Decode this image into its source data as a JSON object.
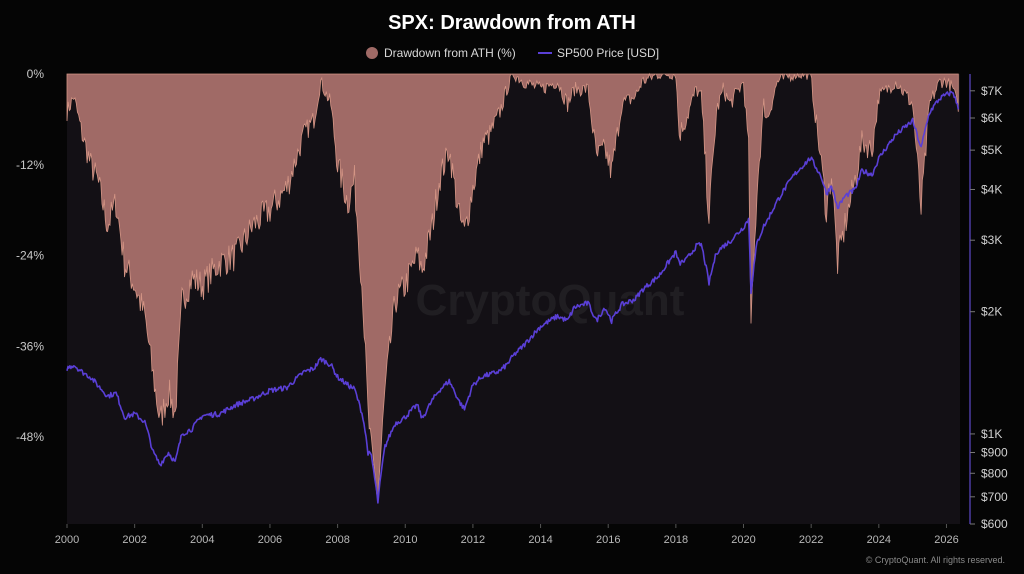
{
  "chart_data": {
    "type": "area",
    "title": "SPX: Drawdown from ATH",
    "legend": [
      {
        "label": "Drawdown from ATH (%)",
        "color": "#a06a66",
        "marker": "dot"
      },
      {
        "label": "SP500 Price [USD]",
        "color": "#5a3fd6",
        "marker": "line"
      }
    ],
    "legend_placement": "top-center",
    "x_ticks": [
      "2000",
      "2002",
      "2004",
      "2006",
      "2008",
      "2010",
      "2012",
      "2014",
      "2016",
      "2018",
      "2020",
      "2022",
      "2024",
      "2026"
    ],
    "xlim": [
      2000.0,
      2026.4
    ],
    "left_axis": {
      "ticks": [
        "0%",
        "-12%",
        "-24%",
        "-36%",
        "-48%"
      ],
      "tick_values": [
        0,
        -12,
        -24,
        -36,
        -48
      ],
      "range": [
        -59.5,
        0
      ]
    },
    "right_axis": {
      "scale": "log",
      "ticks": [
        "$7K",
        "$6K",
        "$5K",
        "$4K",
        "$3K",
        "$2K",
        "$1K",
        "$900",
        "$800",
        "$700",
        "$600"
      ],
      "tick_values": [
        7000,
        6000,
        5000,
        4000,
        3000,
        2000,
        1000,
        900,
        800,
        700,
        600
      ],
      "range": [
        600,
        7700
      ]
    },
    "grid": false,
    "series": [
      {
        "name": "Drawdown from ATH (%)",
        "axis": "left",
        "color": "#a06a66",
        "fill": true,
        "x": [
          2000.0,
          2000.2,
          2000.45,
          2000.7,
          2000.9,
          2001.2,
          2001.45,
          2001.7,
          2002.0,
          2002.3,
          2002.55,
          2002.75,
          2003.0,
          2003.2,
          2003.4,
          2003.7,
          2004.0,
          2004.5,
          2005.0,
          2005.5,
          2006.0,
          2006.5,
          2007.0,
          2007.3,
          2007.5,
          2007.8,
          2008.0,
          2008.3,
          2008.5,
          2008.75,
          2008.9,
          2009.0,
          2009.19,
          2009.4,
          2009.7,
          2010.0,
          2010.35,
          2010.5,
          2010.8,
          2011.0,
          2011.3,
          2011.6,
          2011.75,
          2012.0,
          2012.3,
          2012.5,
          2012.8,
          2013.0,
          2013.2,
          2013.5,
          2014.0,
          2014.5,
          2014.8,
          2015.0,
          2015.4,
          2015.65,
          2015.9,
          2016.1,
          2016.4,
          2016.8,
          2017.0,
          2017.5,
          2018.0,
          2018.1,
          2018.3,
          2018.6,
          2018.75,
          2018.98,
          2019.2,
          2019.4,
          2019.6,
          2020.0,
          2020.15,
          2020.22,
          2020.4,
          2020.6,
          2020.7,
          2021.0,
          2021.5,
          2021.98,
          2022.3,
          2022.45,
          2022.6,
          2022.78,
          2023.0,
          2023.3,
          2023.5,
          2023.8,
          2024.0,
          2024.5,
          2025.0,
          2025.25,
          2025.5,
          2025.8,
          2026.0,
          2026.2,
          2026.35
        ],
        "values": [
          -5,
          -3,
          -8,
          -12,
          -14,
          -20,
          -17,
          -25,
          -28,
          -32,
          -40,
          -46,
          -42,
          -45,
          -30,
          -27,
          -28,
          -25,
          -24,
          -20,
          -18,
          -15,
          -8,
          -6,
          -1,
          -4,
          -12,
          -17,
          -14,
          -30,
          -45,
          -50,
          -56,
          -42,
          -30,
          -28,
          -24,
          -26,
          -20,
          -14,
          -10,
          -19,
          -21,
          -15,
          -9,
          -8,
          -5,
          -2,
          0,
          -1,
          -2,
          -1,
          -4,
          -2,
          -2,
          -11,
          -10,
          -13,
          -4,
          -3,
          -1,
          0,
          0,
          -8,
          -6,
          -2,
          -3,
          -19,
          -5,
          -2,
          -4,
          -1,
          -10,
          -34,
          -15,
          -4,
          -6,
          -1,
          0,
          0,
          -12,
          -18,
          -13,
          -25,
          -20,
          -14,
          -9,
          -10,
          -3,
          -1,
          -4,
          -18,
          -4,
          -1,
          -1,
          -2,
          -5
        ]
      },
      {
        "name": "SP500 Price [USD]",
        "axis": "right",
        "color": "#5a3fd6",
        "fill": false,
        "x": [
          2000.0,
          2000.2,
          2000.45,
          2000.7,
          2000.9,
          2001.2,
          2001.45,
          2001.7,
          2002.0,
          2002.3,
          2002.55,
          2002.75,
          2003.0,
          2003.2,
          2003.4,
          2003.7,
          2004.0,
          2004.5,
          2005.0,
          2005.5,
          2006.0,
          2006.5,
          2007.0,
          2007.3,
          2007.5,
          2007.8,
          2008.0,
          2008.3,
          2008.5,
          2008.75,
          2008.9,
          2009.0,
          2009.19,
          2009.4,
          2009.7,
          2010.0,
          2010.35,
          2010.5,
          2010.8,
          2011.0,
          2011.3,
          2011.6,
          2011.75,
          2012.0,
          2012.3,
          2012.5,
          2012.8,
          2013.0,
          2013.2,
          2013.5,
          2014.0,
          2014.5,
          2014.8,
          2015.0,
          2015.4,
          2015.65,
          2015.9,
          2016.1,
          2016.4,
          2016.8,
          2017.0,
          2017.5,
          2018.0,
          2018.1,
          2018.3,
          2018.6,
          2018.75,
          2018.98,
          2019.2,
          2019.4,
          2019.6,
          2020.0,
          2020.15,
          2020.22,
          2020.4,
          2020.6,
          2020.7,
          2021.0,
          2021.5,
          2021.98,
          2022.3,
          2022.45,
          2022.6,
          2022.78,
          2023.0,
          2023.3,
          2023.5,
          2023.8,
          2024.0,
          2024.5,
          2025.0,
          2025.25,
          2025.5,
          2025.8,
          2026.0,
          2026.2,
          2026.35
        ],
        "values": [
          1450,
          1480,
          1420,
          1380,
          1320,
          1240,
          1260,
          1100,
          1120,
          1070,
          900,
          840,
          900,
          850,
          1000,
          1030,
          1110,
          1120,
          1180,
          1220,
          1280,
          1300,
          1420,
          1450,
          1530,
          1480,
          1380,
          1320,
          1290,
          1100,
          900,
          880,
          680,
          930,
          1060,
          1100,
          1180,
          1090,
          1210,
          1280,
          1350,
          1200,
          1150,
          1320,
          1390,
          1400,
          1430,
          1480,
          1560,
          1650,
          1840,
          1950,
          1900,
          2050,
          2100,
          1900,
          2050,
          1900,
          2080,
          2150,
          2260,
          2450,
          2800,
          2630,
          2680,
          2900,
          2930,
          2350,
          2800,
          2900,
          2980,
          3230,
          3380,
          2240,
          2950,
          3250,
          3350,
          3750,
          4350,
          4780,
          4300,
          3900,
          4100,
          3600,
          3850,
          4000,
          4450,
          4350,
          4770,
          5450,
          5900,
          5050,
          6200,
          6700,
          6850,
          6950,
          6300
        ]
      }
    ],
    "watermark": "CryptoQuant",
    "credit": "© CryptoQuant. All rights reserved."
  }
}
